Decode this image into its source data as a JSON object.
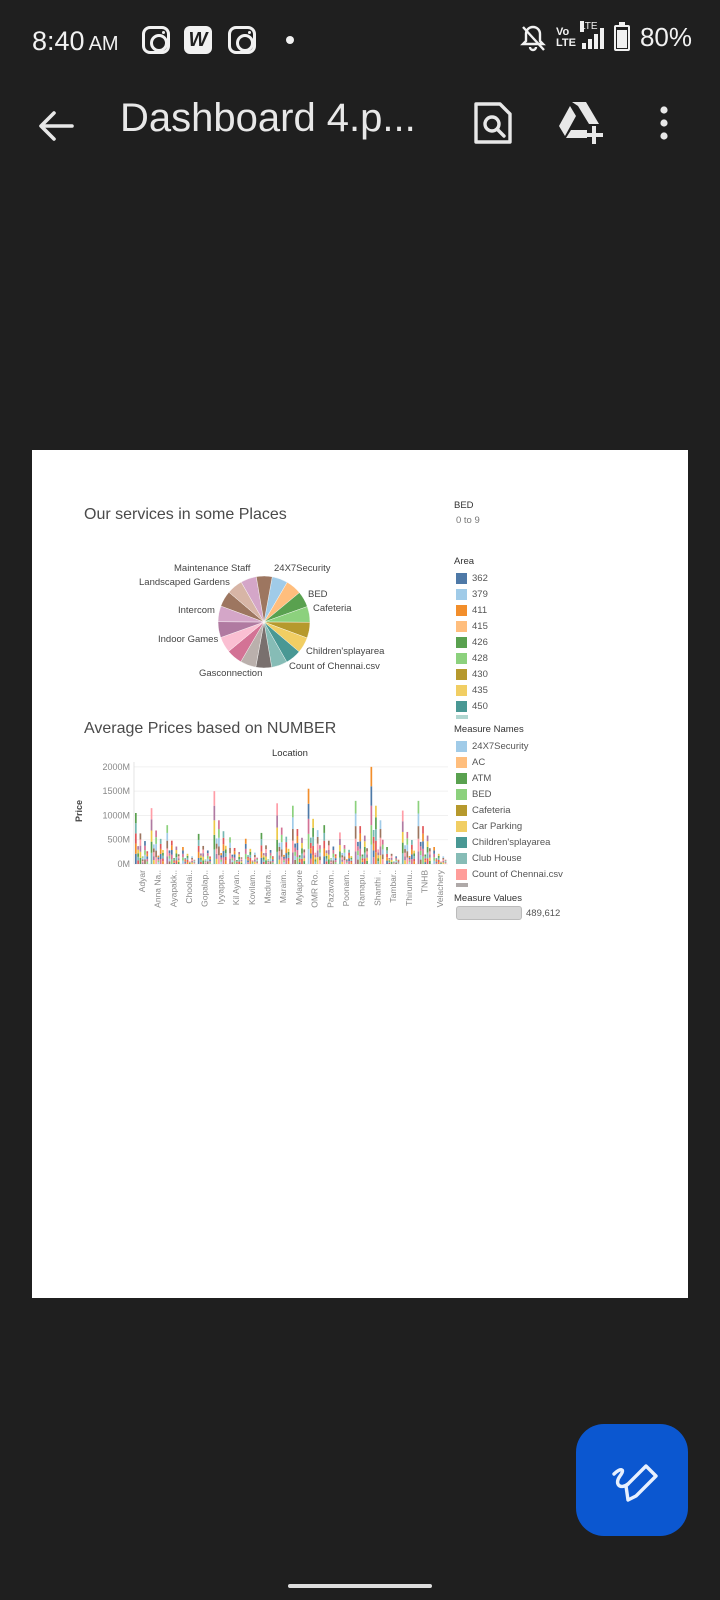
{
  "status_bar": {
    "time": "8:40",
    "ampm": "AM",
    "battery": "80%",
    "network": "LTE",
    "volte": "Vo LTE",
    "icons": [
      "instagram-icon",
      "wps-office-icon",
      "instagram-icon",
      "dot-icon",
      "bell-off-icon",
      "volte-icon",
      "signal-icon",
      "battery-icon"
    ]
  },
  "app_bar": {
    "title": "Dashboard 4.p...",
    "icons": [
      "back-arrow-icon",
      "find-in-document-icon",
      "add-to-drive-icon",
      "more-vert-icon"
    ]
  },
  "dashboard": {
    "pie_title": "Our services in some Places",
    "bar_title": "Average Prices based on NUMBER",
    "bed_filter": {
      "label": "BED",
      "value": "0 to 9"
    },
    "area_legend": {
      "title": "Area",
      "items": [
        {
          "label": "362",
          "color": "#4e79a7"
        },
        {
          "label": "379",
          "color": "#a0cbe8"
        },
        {
          "label": "411",
          "color": "#f28e2b"
        },
        {
          "label": "415",
          "color": "#ffbe7d"
        },
        {
          "label": "426",
          "color": "#59a14f"
        },
        {
          "label": "428",
          "color": "#8cd17d"
        },
        {
          "label": "430",
          "color": "#b6992d"
        },
        {
          "label": "435",
          "color": "#f1ce63"
        },
        {
          "label": "450",
          "color": "#499894"
        }
      ]
    },
    "measure_names_legend": {
      "title": "Measure Names",
      "items": [
        {
          "label": "24X7Security",
          "color": "#a0cbe8"
        },
        {
          "label": "AC",
          "color": "#ffbe7d"
        },
        {
          "label": "ATM",
          "color": "#59a14f"
        },
        {
          "label": "BED",
          "color": "#8cd17d"
        },
        {
          "label": "Cafeteria",
          "color": "#b6992d"
        },
        {
          "label": "Car Parking",
          "color": "#f1ce63"
        },
        {
          "label": "Children'splayarea",
          "color": "#499894"
        },
        {
          "label": "Club House",
          "color": "#86bcb6"
        },
        {
          "label": "Count of Chennai.csv",
          "color": "#ff9d9a"
        }
      ]
    },
    "measure_values": {
      "title": "Measure Values",
      "value": "489,612"
    },
    "pie_labels": {
      "maintenance": "Maintenance Staff",
      "landscaped": "Landscaped Gardens",
      "security": "24X7Security",
      "bed": "BED",
      "cafeteria": "Cafeteria",
      "intercom": "Intercom",
      "indoor": "Indoor Games",
      "children": "Children'splayarea",
      "count": "Count of Chennai.csv",
      "gas": "Gasconnection"
    }
  },
  "chart_data": [
    {
      "type": "pie",
      "title": "Our services in some Places",
      "slices": [
        {
          "label": "24X7Security",
          "value": 5.5,
          "color": "#a0cbe8"
        },
        {
          "label": "AC",
          "value": 5.5,
          "color": "#ffbe7d"
        },
        {
          "label": "ATM",
          "value": 5.5,
          "color": "#59a14f"
        },
        {
          "label": "BED",
          "value": 5.5,
          "color": "#8cd17d"
        },
        {
          "label": "Cafeteria",
          "value": 5.5,
          "color": "#b6992d"
        },
        {
          "label": "Car Parking",
          "value": 5.5,
          "color": "#f1ce63"
        },
        {
          "label": "Children'splayarea",
          "value": 5.5,
          "color": "#499894"
        },
        {
          "label": "Club House",
          "value": 5.5,
          "color": "#86bcb6"
        },
        {
          "label": "Count of Chennai.csv",
          "value": 5.5,
          "color": "#79706e"
        },
        {
          "label": "",
          "value": 5.5,
          "color": "#bab0ac"
        },
        {
          "label": "Gasconnection",
          "value": 5.5,
          "color": "#d37295"
        },
        {
          "label": "",
          "value": 5.5,
          "color": "#fabfd2"
        },
        {
          "label": "Indoor Games",
          "value": 5.5,
          "color": "#b07aa1"
        },
        {
          "label": "",
          "value": 5.5,
          "color": "#d4a6c8"
        },
        {
          "label": "Intercom",
          "value": 5.5,
          "color": "#9d7660"
        },
        {
          "label": "",
          "value": 5.5,
          "color": "#d7b5a6"
        },
        {
          "label": "Landscaped Gardens",
          "value": 5.5,
          "color": "#d4a6c8"
        },
        {
          "label": "Maintenance Staff",
          "value": 5.5,
          "color": "#9d7660"
        }
      ]
    },
    {
      "type": "bar",
      "title": "Average Prices based on NUMBER",
      "header": "Location",
      "ylabel": "Price",
      "ylim": [
        0,
        2100
      ],
      "yticks": [
        "2000M",
        "1500M",
        "1000M",
        "500M",
        "0M"
      ],
      "ytick_values": [
        2000,
        1500,
        1000,
        500,
        0
      ],
      "categories": [
        "Adyar",
        "Anna Na..",
        "Ayapakk..",
        "Choolai..",
        "Gopalap..",
        "Iyyappa..",
        "Kil Ayan..",
        "Kovilam..",
        "Madura..",
        "Maraim..",
        "Mylapore",
        "OMR Ro..",
        "Pazavan..",
        "Poonam..",
        "Ramapu..",
        "Shanthi ..",
        "Tambar..",
        "Thirumu..",
        "TNHB",
        "Velachery"
      ],
      "values": [
        1050,
        1150,
        800,
        350,
        620,
        1500,
        550,
        520,
        640,
        1250,
        1200,
        1550,
        800,
        650,
        1300,
        2000,
        350,
        1100,
        1300,
        350
      ]
    }
  ]
}
